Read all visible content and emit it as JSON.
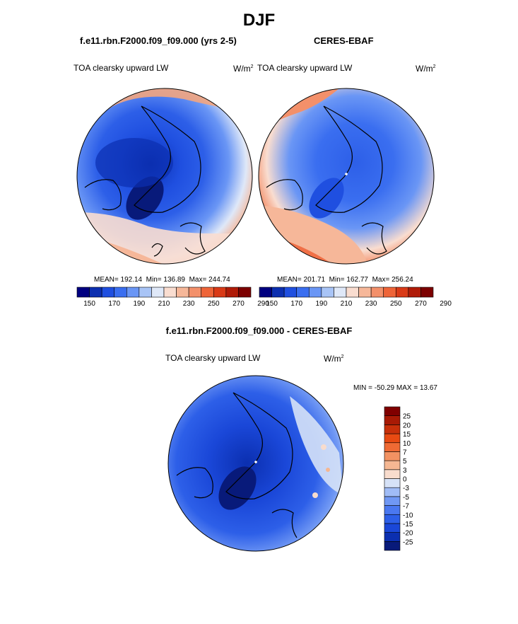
{
  "figure": {
    "title": "DJF"
  },
  "colors": {
    "bar13": [
      "#000080",
      "#0c2fb0",
      "#1f4fe0",
      "#3a6ef0",
      "#6a96f5",
      "#a8c4f6",
      "#dfe8f8",
      "#f9ddd0",
      "#f6b799",
      "#f3906a",
      "#ee6438",
      "#d93a17",
      "#b01b08",
      "#7c0000"
    ],
    "diff17": [
      "#081a7a",
      "#0b2fb0",
      "#1a47d8",
      "#2d5fe8",
      "#4a78f0",
      "#7098f4",
      "#a0bcf6",
      "#d6e2f7",
      "#f8dccd",
      "#f5b792",
      "#f29262",
      "#ef6a34",
      "#e84a12",
      "#c8300a",
      "#a81a05",
      "#800000"
    ]
  },
  "chart_data": [
    {
      "type": "heatmap",
      "projection": "north-polar-stereographic",
      "case_title": "f.e11.rbn.F2000.f09_f09.000 (yrs 2-5)",
      "variable": "TOA clearsky upward LW",
      "units_base": "W/m",
      "units_exp": "2",
      "mean_label": "MEAN=",
      "mean": "192.14",
      "min_label": "Min=",
      "min": "136.89",
      "max_label": "Max=",
      "max": "244.74",
      "colorbar_labels": [
        "150",
        "170",
        "190",
        "210",
        "230",
        "250",
        "270",
        "290"
      ]
    },
    {
      "type": "heatmap",
      "projection": "north-polar-stereographic",
      "case_title": "CERES-EBAF",
      "variable": "TOA clearsky upward LW",
      "units_base": "W/m",
      "units_exp": "2",
      "mean_label": "MEAN=",
      "mean": "201.71",
      "min_label": "Min=",
      "min": "162.77",
      "max_label": "Max=",
      "max": "256.24",
      "colorbar_labels": [
        "150",
        "170",
        "190",
        "210",
        "230",
        "250",
        "270",
        "290"
      ]
    },
    {
      "type": "heatmap",
      "projection": "north-polar-stereographic",
      "case_title": "f.e11.rbn.F2000.f09_f09.000 - CERES-EBAF",
      "variable": "TOA clearsky upward LW",
      "units_base": "W/m",
      "units_exp": "2",
      "min_label": "MIN =",
      "min": "-50.29",
      "max_label": "MAX =",
      "max": "13.67",
      "colorbar_labels": [
        "25",
        "20",
        "15",
        "10",
        "7",
        "5",
        "3",
        "0",
        "-3",
        "-5",
        "-7",
        "-10",
        "-15",
        "-20",
        "-25"
      ]
    }
  ]
}
